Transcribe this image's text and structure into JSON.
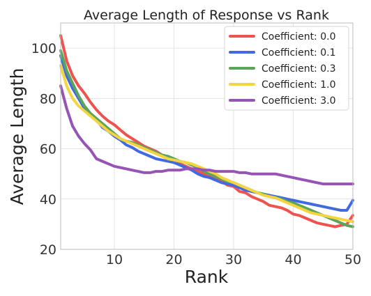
{
  "chart_data": {
    "type": "line",
    "title": "Average Length of Response vs Rank",
    "xlabel": "Rank",
    "ylabel": "Average Length",
    "xlim": [
      1,
      50
    ],
    "ylim": [
      20,
      110
    ],
    "xticks": [
      10,
      20,
      30,
      40,
      50
    ],
    "yticks": [
      20,
      40,
      60,
      80,
      100
    ],
    "grid": true,
    "legend_position": "top-right",
    "x": [
      1,
      2,
      3,
      4,
      5,
      6,
      7,
      8,
      9,
      10,
      11,
      12,
      13,
      14,
      15,
      16,
      17,
      18,
      19,
      20,
      21,
      22,
      23,
      24,
      25,
      26,
      27,
      28,
      29,
      30,
      31,
      32,
      33,
      34,
      35,
      36,
      37,
      38,
      39,
      40,
      41,
      42,
      43,
      44,
      45,
      46,
      47,
      48,
      49,
      50
    ],
    "series": [
      {
        "name": "Coefficient: 0.0",
        "color": "#EF5350",
        "values": [
          105,
          95,
          89,
          85,
          82,
          78.5,
          75.5,
          73,
          71,
          69.5,
          67.5,
          65.5,
          64,
          62.5,
          61,
          60,
          59,
          57.5,
          56.5,
          55,
          54,
          53,
          52,
          51,
          50,
          49,
          48,
          47,
          45.5,
          45,
          43,
          42.5,
          41,
          40,
          39,
          37.5,
          37,
          36.5,
          35.5,
          34,
          33.5,
          32.5,
          31.5,
          30.5,
          30,
          29.5,
          29,
          29.5,
          30,
          33.5
        ]
      },
      {
        "name": "Coefficient: 0.1",
        "color": "#4169E1",
        "values": [
          97,
          89,
          84,
          80,
          76,
          74,
          71.5,
          68.5,
          67,
          65,
          63.5,
          61.5,
          60.5,
          59,
          58,
          57,
          56,
          55.5,
          55,
          54.5,
          53.5,
          52.5,
          51.5,
          50,
          49,
          48.5,
          47.5,
          46.5,
          46,
          45.5,
          44.5,
          43.5,
          43,
          42.5,
          42,
          41.5,
          41,
          40.5,
          40,
          39.5,
          39,
          38.5,
          38,
          37.5,
          37,
          36.5,
          36,
          35.5,
          35.5,
          39.5
        ]
      },
      {
        "name": "Coefficient: 0.3",
        "color": "#5BA55B",
        "values": [
          99,
          91,
          86,
          81,
          77,
          74,
          72,
          70,
          68,
          66,
          64,
          63,
          62.5,
          61.5,
          60.5,
          59.5,
          58.5,
          57.5,
          57,
          56,
          55,
          54.5,
          53.5,
          52.5,
          51,
          50,
          49,
          48,
          47,
          46.5,
          45.5,
          44.5,
          43.5,
          42.5,
          42,
          41,
          40.5,
          40,
          39,
          38.5,
          37.5,
          36.5,
          35.5,
          34.5,
          33.5,
          32.5,
          31.5,
          30.5,
          29.5,
          29
        ]
      },
      {
        "name": "Coefficient: 1.0",
        "color": "#F5D442",
        "values": [
          93,
          85,
          80,
          77,
          75,
          73,
          71,
          69,
          67,
          65.5,
          64,
          63,
          62,
          61,
          60,
          59,
          58,
          57,
          56,
          55.5,
          55,
          54.5,
          54,
          53,
          52,
          51,
          50,
          48.5,
          47.5,
          46.5,
          45.5,
          44.5,
          43.5,
          42.5,
          41.5,
          41,
          40.5,
          39.5,
          38.5,
          37.5,
          36.5,
          35.5,
          34.5,
          34,
          33.5,
          33,
          32.5,
          32,
          31.5,
          31
        ]
      },
      {
        "name": "Coefficient: 3.0",
        "color": "#9655B4",
        "values": [
          85,
          76,
          69,
          65,
          62,
          59.5,
          56,
          55,
          54,
          53,
          52.5,
          52,
          51.5,
          51,
          50.5,
          50.5,
          51,
          51,
          51.5,
          51.5,
          51.5,
          52,
          52,
          52,
          51.5,
          51.5,
          51,
          51,
          51,
          51,
          50.5,
          50.5,
          50,
          50,
          50,
          50,
          50,
          49.5,
          49,
          48.5,
          48,
          47.5,
          47,
          46.5,
          46,
          46,
          46,
          46,
          46,
          46
        ]
      }
    ]
  }
}
